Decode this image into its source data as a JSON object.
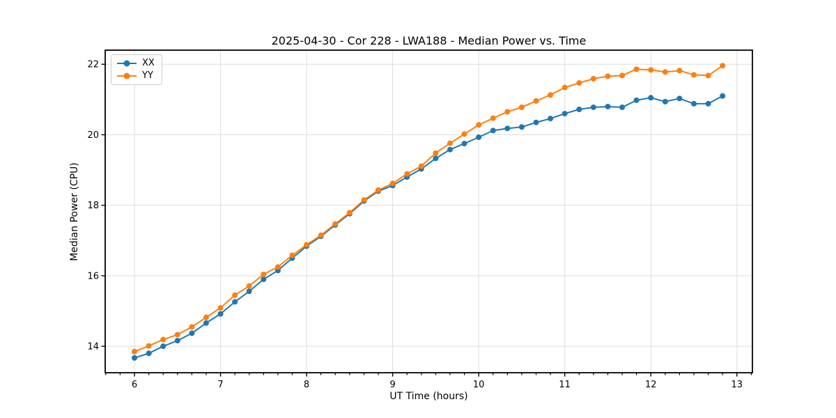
{
  "chart_data": {
    "type": "line",
    "title": "2025-04-30 - Cor 228 - LWA188 - Median Power vs. Time",
    "xlabel": "UT Time (hours)",
    "ylabel": "Median Power (CPU)",
    "xlim": [
      5.66,
      13.18
    ],
    "ylim": [
      13.25,
      22.4
    ],
    "xticks": [
      6,
      7,
      8,
      9,
      10,
      11,
      12,
      13
    ],
    "yticks": [
      14,
      16,
      18,
      20,
      22
    ],
    "x_minor_per_hour": 6,
    "grid": true,
    "grid_color": "#dddddd",
    "axis_color": "#000000",
    "background_color": "#ffffff",
    "legend_position": "upper-left",
    "x": [
      6.0,
      6.167,
      6.333,
      6.5,
      6.667,
      6.833,
      7.0,
      7.167,
      7.333,
      7.5,
      7.667,
      7.833,
      8.0,
      8.167,
      8.333,
      8.5,
      8.667,
      8.833,
      9.0,
      9.167,
      9.333,
      9.5,
      9.667,
      9.833,
      10.0,
      10.167,
      10.333,
      10.5,
      10.667,
      10.833,
      11.0,
      11.167,
      11.333,
      11.5,
      11.667,
      11.833,
      12.0,
      12.167,
      12.333,
      12.5,
      12.667,
      12.833
    ],
    "series": [
      {
        "name": "XX",
        "color": "#1f77b4",
        "values": [
          13.67,
          13.8,
          14.0,
          14.16,
          14.37,
          14.66,
          14.92,
          15.26,
          15.56,
          15.9,
          16.15,
          16.5,
          16.84,
          17.12,
          17.44,
          17.76,
          18.12,
          18.4,
          18.56,
          18.8,
          19.03,
          19.33,
          19.58,
          19.75,
          19.93,
          20.12,
          20.18,
          20.22,
          20.35,
          20.46,
          20.6,
          20.72,
          20.78,
          20.8,
          20.78,
          20.98,
          21.05,
          20.94,
          21.03,
          20.88,
          20.88,
          21.1
        ]
      },
      {
        "name": "YY",
        "color": "#ff7f0e",
        "values": [
          13.85,
          14.01,
          14.19,
          14.33,
          14.55,
          14.82,
          15.09,
          15.45,
          15.71,
          16.04,
          16.25,
          16.58,
          16.88,
          17.15,
          17.47,
          17.79,
          18.15,
          18.43,
          18.62,
          18.89,
          19.11,
          19.48,
          19.76,
          20.02,
          20.28,
          20.47,
          20.65,
          20.78,
          20.96,
          21.13,
          21.34,
          21.47,
          21.59,
          21.66,
          21.68,
          21.86,
          21.84,
          21.78,
          21.82,
          21.7,
          21.68,
          21.96
        ]
      }
    ]
  }
}
